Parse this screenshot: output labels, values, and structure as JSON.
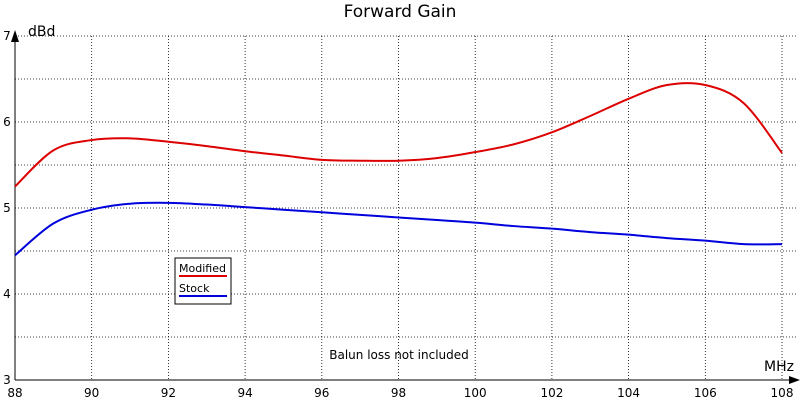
{
  "chart_data": {
    "type": "line",
    "title": "Forward Gain",
    "ylabel": "dBd",
    "xlabel": "MHz",
    "annotation": "Balun loss not included",
    "xlim": [
      88,
      108
    ],
    "ylim": [
      3,
      7
    ],
    "x_ticks": [
      88,
      90,
      92,
      94,
      96,
      98,
      100,
      102,
      104,
      106,
      108
    ],
    "y_ticks": [
      3,
      4,
      5,
      6,
      7
    ],
    "grid": true,
    "legend_position": "left-center",
    "series": [
      {
        "name": "Modified",
        "color": "#dd0000",
        "x": [
          88,
          89,
          90,
          91,
          92,
          93,
          94,
          95,
          96,
          97,
          98,
          99,
          100,
          101,
          102,
          103,
          104,
          105,
          106,
          107,
          108
        ],
        "values": [
          5.25,
          5.67,
          5.79,
          5.81,
          5.77,
          5.72,
          5.66,
          5.61,
          5.56,
          5.55,
          5.55,
          5.58,
          5.65,
          5.74,
          5.88,
          6.07,
          6.27,
          6.43,
          6.43,
          6.22,
          5.64
        ]
      },
      {
        "name": "Stock",
        "color": "#0000dd",
        "x": [
          88,
          89,
          90,
          91,
          92,
          93,
          94,
          95,
          96,
          97,
          98,
          99,
          100,
          101,
          102,
          103,
          104,
          105,
          106,
          107,
          108
        ],
        "values": [
          4.45,
          4.82,
          4.98,
          5.05,
          5.06,
          5.04,
          5.01,
          4.98,
          4.95,
          4.92,
          4.89,
          4.86,
          4.83,
          4.79,
          4.76,
          4.72,
          4.69,
          4.65,
          4.62,
          4.58,
          4.58
        ]
      }
    ]
  }
}
